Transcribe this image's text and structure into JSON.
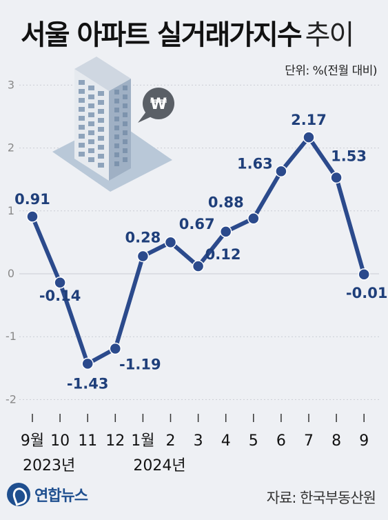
{
  "title_main": "서울 아파트 실거래가지수",
  "title_light": "추이",
  "unit": "단위: %(전월 대비)",
  "source": "자료: 한국부동산원",
  "logo": "연합뉴스",
  "logo_icon": "yonhap-logo-icon",
  "illustration_icon": "apartment-building-icon",
  "badge_icon": "won-speech-bubble-icon",
  "won_symbol": "₩",
  "colors": {
    "line": "#2b4a8c",
    "label": "#1f3f7a",
    "grid": "#c9ccd3",
    "axis_text": "#888888"
  },
  "chart_data": {
    "type": "line",
    "categories": [
      "9월",
      "10",
      "11",
      "12",
      "1월",
      "2",
      "3",
      "4",
      "5",
      "6",
      "7",
      "8",
      "9"
    ],
    "year_labels": [
      {
        "category_index": 0,
        "text": "2023년"
      },
      {
        "category_index": 4,
        "text": "2024년"
      }
    ],
    "values": [
      0.91,
      -0.14,
      -1.43,
      -1.19,
      0.28,
      0.5,
      0.12,
      0.67,
      0.88,
      1.63,
      2.17,
      1.53,
      -0.01
    ],
    "data_labels": [
      "0.91",
      "-0.14",
      "-1.43",
      "-1.19",
      "0.28",
      "",
      "0.12",
      "0.67",
      "0.88",
      "1.63",
      "2.17",
      "1.53",
      "-0.01"
    ],
    "yticks": [
      -2,
      -1,
      0,
      1,
      2,
      3
    ],
    "ytick_labels": [
      "-2",
      "-1",
      "0",
      "1",
      "2",
      "3"
    ],
    "ylim": [
      -2,
      3
    ],
    "grid": true
  }
}
